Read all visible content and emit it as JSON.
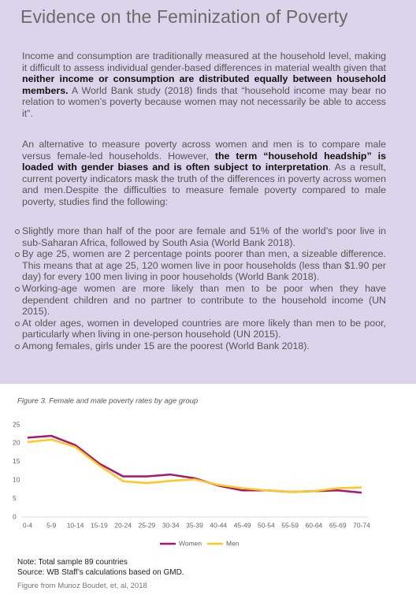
{
  "header": {
    "title": "Evidence on the Feminization of Poverty"
  },
  "paragraphs": [
    [
      {
        "text": "Income and consumption are traditionally measured at the household level, making it difficult to assess individual gender-based differences in material wealth given that ",
        "bold": false
      },
      {
        "text": "neither income or consumption are distributed equally between household members.",
        "bold": true
      },
      {
        "text": " A World Bank study (2018) finds that “household income may bear no relation to women’s poverty because women may not necessarily be able to access it”.",
        "bold": false
      }
    ],
    [
      {
        "text": "An alternative to measure poverty across women and men is to compare male versus female-led households. However, ",
        "bold": false
      },
      {
        "text": "the term “household headship” is loaded with gender biases and is often subject to interpretation",
        "bold": true
      },
      {
        "text": ". As a result, current poverty indicators mask the truth of the differences in poverty across women and men.Despite the difficulties to measure female poverty compared to male poverty, studies find the following:",
        "bold": false
      }
    ]
  ],
  "bullets": [
    "Slightly more than half of the poor are female and 51% of the world’s poor live in sub-Saharan Africa, followed by South Asia (World Bank 2018).",
    "By age 25, women are 2 percentage points poorer than men, a sizeable difference. This means that at age 25, 120 women live in poor households (less than $1.90 per day) for every 100 men living in poor households (World Bank 2018).",
    "Working-age women are more likely than men to be poor when they have dependent children and no partner to contribute to the household income (UN 2015).",
    "At older ages, women in developed countries are more likely than men to be poor, particularly when living in one-person household (UN 2015).",
    "Among females, girls under 15 are the poorest (World Bank 2018)."
  ],
  "chart_data": {
    "type": "line",
    "title": "Figure 3. Female and male poverty rates by age group",
    "categories": [
      "0-4",
      "5-9",
      "10-14",
      "15-19",
      "20-24",
      "25-29",
      "30-34",
      "35-39",
      "40-44",
      "45-49",
      "50-54",
      "55-59",
      "60-64",
      "65-69",
      "70-74"
    ],
    "series": [
      {
        "name": "Women",
        "color": "#a8176f",
        "values": [
          21.5,
          22,
          19.5,
          14.5,
          11,
          11,
          11.5,
          10.5,
          8.5,
          7.2,
          7.2,
          6.8,
          7,
          7.2,
          6.6
        ]
      },
      {
        "name": "Men",
        "color": "#ffc820",
        "values": [
          20.3,
          21,
          19,
          14,
          9.7,
          9.2,
          9.8,
          10.2,
          8.7,
          7.8,
          7.2,
          6.8,
          7,
          7.8,
          8
        ]
      }
    ],
    "ylim": [
      0,
      25
    ],
    "yticks": [
      0,
      5,
      10,
      15,
      20,
      25
    ],
    "grid": false,
    "legend": "bottom"
  },
  "figure": {
    "notes": [
      "Note: Total sample 89 countries",
      "Source: WB Staff’s calculations based on GMD."
    ],
    "caption": "Figure from Munoz Boudet, et, al, 2018"
  }
}
